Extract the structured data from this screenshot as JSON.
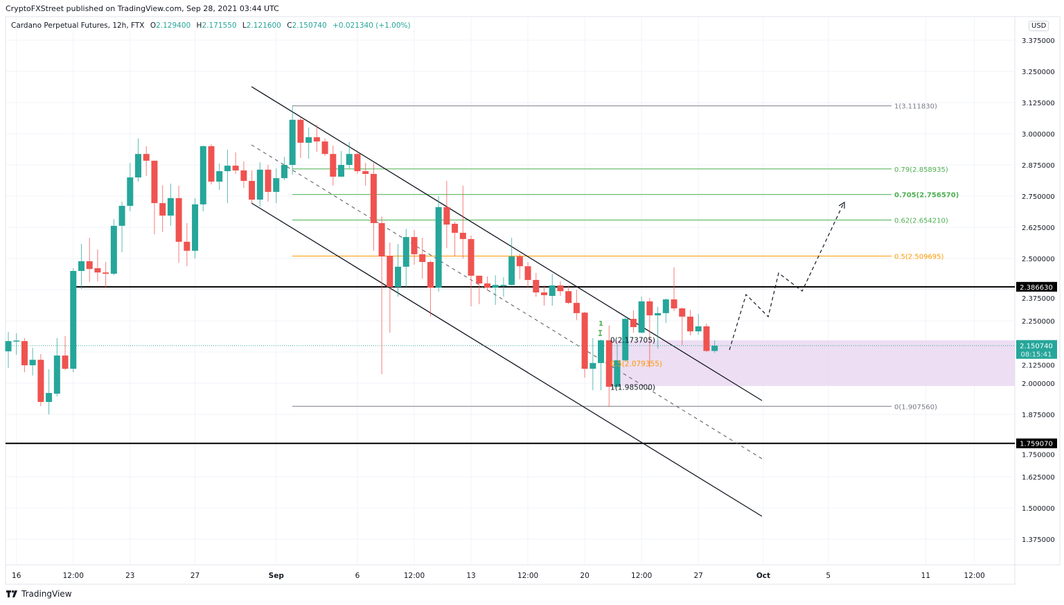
{
  "publisher_line": "CryptoFXStreet published on TradingView.com, Sep 28, 2021 03:44 UTC",
  "legend": {
    "symbol": "Cardano Perpetual Futures, 12h, FTX",
    "o_label": "O",
    "o": "2.129400",
    "h_label": "H",
    "h": "2.171550",
    "l_label": "L",
    "l": "2.121600",
    "c_label": "C",
    "c": "2.150740",
    "change": "+0.021340 (+1.00%)"
  },
  "currency": "USD",
  "brand": "TradingView",
  "colors": {
    "up": "#26a69a",
    "down": "#ef5350",
    "fib_green": "#4caf50",
    "fib_orange": "#ff9800",
    "fib_gray": "#787b86",
    "zone": "#e9d6f0",
    "level": "#000000"
  },
  "chart_data": {
    "type": "candlestick",
    "ylim": [
      1.3,
      3.45
    ],
    "grid": true,
    "y_ticks": [
      "3.375000",
      "3.250000",
      "3.125000",
      "3.000000",
      "2.875000",
      "2.750000",
      "2.625000",
      "2.500000",
      "2.375000",
      "2.250000",
      "2.125000",
      "2.000000",
      "1.875000",
      "1.750000",
      "1.625000",
      "1.500000",
      "1.375000"
    ],
    "x_ticks": [
      "16",
      "12:00",
      "23",
      "27",
      "Sep",
      "6",
      "12:00",
      "13",
      "12:00",
      "20",
      "12:00",
      "27",
      "Oct",
      "5",
      "11",
      "12:00"
    ],
    "candles": [
      [
        2.128,
        2.206,
        2.061,
        2.169
      ],
      [
        2.169,
        2.2,
        2.114,
        2.171
      ],
      [
        2.169,
        2.181,
        2.044,
        2.072
      ],
      [
        2.072,
        2.142,
        2.031,
        2.094
      ],
      [
        2.094,
        2.117,
        1.908,
        1.925
      ],
      [
        1.925,
        2.056,
        1.875,
        1.961
      ],
      [
        1.958,
        2.181,
        1.947,
        2.111
      ],
      [
        2.111,
        2.189,
        2.053,
        2.058
      ],
      [
        2.058,
        2.461,
        2.044,
        2.45
      ],
      [
        2.45,
        2.558,
        2.378,
        2.489
      ],
      [
        2.489,
        2.583,
        2.406,
        2.458
      ],
      [
        2.461,
        2.536,
        2.408,
        2.444
      ],
      [
        2.444,
        2.486,
        2.381,
        2.439
      ],
      [
        2.439,
        2.658,
        2.433,
        2.631
      ],
      [
        2.631,
        2.728,
        2.525,
        2.711
      ],
      [
        2.711,
        2.883,
        2.689,
        2.825
      ],
      [
        2.825,
        2.981,
        2.808,
        2.919
      ],
      [
        2.919,
        2.95,
        2.831,
        2.892
      ],
      [
        2.892,
        2.892,
        2.597,
        2.722
      ],
      [
        2.722,
        2.794,
        2.606,
        2.672
      ],
      [
        2.672,
        2.8,
        2.631,
        2.742
      ],
      [
        2.742,
        2.792,
        2.483,
        2.567
      ],
      [
        2.567,
        2.642,
        2.469,
        2.531
      ],
      [
        2.531,
        2.742,
        2.5,
        2.717
      ],
      [
        2.717,
        2.953,
        2.689,
        2.95
      ],
      [
        2.95,
        2.958,
        2.797,
        2.808
      ],
      [
        2.808,
        2.881,
        2.775,
        2.85
      ],
      [
        2.85,
        2.936,
        2.722,
        2.872
      ],
      [
        2.872,
        2.925,
        2.839,
        2.853
      ],
      [
        2.853,
        2.889,
        2.783,
        2.811
      ],
      [
        2.811,
        2.853,
        2.722,
        2.736
      ],
      [
        2.736,
        2.886,
        2.708,
        2.856
      ],
      [
        2.856,
        2.875,
        2.728,
        2.767
      ],
      [
        2.767,
        2.861,
        2.722,
        2.822
      ],
      [
        2.822,
        2.908,
        2.814,
        2.875
      ],
      [
        2.875,
        3.111,
        2.836,
        3.056
      ],
      [
        3.056,
        3.067,
        2.903,
        2.964
      ],
      [
        2.964,
        3.025,
        2.9,
        2.986
      ],
      [
        2.986,
        3.036,
        2.928,
        2.969
      ],
      [
        2.969,
        2.981,
        2.911,
        2.919
      ],
      [
        2.919,
        2.953,
        2.792,
        2.828
      ],
      [
        2.828,
        2.931,
        2.828,
        2.875
      ],
      [
        2.875,
        2.967,
        2.861,
        2.919
      ],
      [
        2.919,
        2.933,
        2.839,
        2.85
      ],
      [
        2.85,
        2.883,
        2.792,
        2.839
      ],
      [
        2.839,
        2.883,
        2.531,
        2.642
      ],
      [
        2.642,
        2.669,
        2.036,
        2.508
      ],
      [
        2.511,
        2.564,
        2.203,
        2.386
      ],
      [
        2.386,
        2.558,
        2.347,
        2.467
      ],
      [
        2.467,
        2.619,
        2.386,
        2.586
      ],
      [
        2.586,
        2.614,
        2.475,
        2.517
      ],
      [
        2.517,
        2.583,
        2.419,
        2.486
      ],
      [
        2.486,
        2.492,
        2.267,
        2.383
      ],
      [
        2.383,
        2.75,
        2.367,
        2.706
      ],
      [
        2.706,
        2.811,
        2.542,
        2.636
      ],
      [
        2.639,
        2.647,
        2.508,
        2.603
      ],
      [
        2.603,
        2.792,
        2.5,
        2.578
      ],
      [
        2.578,
        2.592,
        2.308,
        2.431
      ],
      [
        2.431,
        2.431,
        2.317,
        2.4
      ],
      [
        2.4,
        2.428,
        2.372,
        2.383
      ],
      [
        2.383,
        2.433,
        2.314,
        2.394
      ],
      [
        2.392,
        2.425,
        2.347,
        2.394
      ],
      [
        2.394,
        2.583,
        2.392,
        2.508
      ],
      [
        2.508,
        2.519,
        2.417,
        2.469
      ],
      [
        2.469,
        2.486,
        2.381,
        2.414
      ],
      [
        2.414,
        2.442,
        2.347,
        2.364
      ],
      [
        2.364,
        2.392,
        2.311,
        2.353
      ],
      [
        2.35,
        2.439,
        2.311,
        2.392
      ],
      [
        2.392,
        2.408,
        2.35,
        2.369
      ],
      [
        2.369,
        2.392,
        2.317,
        2.322
      ],
      [
        2.322,
        2.375,
        2.253,
        2.281
      ],
      [
        2.283,
        2.286,
        2.022,
        2.058
      ],
      [
        2.058,
        2.181,
        1.972,
        2.081
      ],
      [
        2.081,
        2.175,
        1.972,
        2.172
      ],
      [
        2.172,
        2.231,
        1.906,
        1.986
      ],
      [
        1.986,
        2.158,
        1.981,
        2.092
      ],
      [
        2.092,
        2.269,
        2.089,
        2.258
      ],
      [
        2.258,
        2.292,
        2.203,
        2.225
      ],
      [
        2.203,
        2.347,
        2.2,
        2.328
      ],
      [
        2.328,
        2.342,
        2.064,
        2.272
      ],
      [
        2.272,
        2.306,
        2.139,
        2.281
      ],
      [
        2.281,
        2.339,
        2.242,
        2.336
      ],
      [
        2.336,
        2.464,
        2.289,
        2.3
      ],
      [
        2.3,
        2.303,
        2.153,
        2.267
      ],
      [
        2.267,
        2.294,
        2.192,
        2.208
      ],
      [
        2.208,
        2.278,
        2.194,
        2.228
      ],
      [
        2.228,
        2.239,
        2.126,
        2.1294
      ],
      [
        2.1294,
        2.17155,
        2.1216,
        2.15074
      ]
    ],
    "fib_main": [
      {
        "label": "1(3.111830)",
        "price": 3.11183,
        "color": "#787b86"
      },
      {
        "label": "0.79(2.858935)",
        "price": 2.858935,
        "color": "#4caf50"
      },
      {
        "label": "0.705(2.756570)",
        "price": 2.75657,
        "color": "#4caf50"
      },
      {
        "label": "0.62(2.654210)",
        "price": 2.65421,
        "color": "#4caf50"
      },
      {
        "label": "0.5(2.509695)",
        "price": 2.509695,
        "color": "#ff9800"
      },
      {
        "label": "0(1.907560)",
        "price": 1.90756,
        "color": "#787b86"
      }
    ],
    "fib_small": [
      {
        "label": "0(2.173705)",
        "price": 2.173705,
        "color": "#131722"
      },
      {
        "label": "0.5(2.079355)",
        "price": 2.079355,
        "color": "#ff9800"
      },
      {
        "label": "1(1.985000)",
        "price": 1.985,
        "color": "#131722"
      }
    ],
    "zone": [
      1.989,
      2.172
    ],
    "levels": [
      {
        "label": "2.386630",
        "price": 2.38663
      },
      {
        "label": "1.759070",
        "price": 1.75907
      }
    ],
    "last_price": {
      "label": "2.150740",
      "price": 2.15074,
      "countdown": "08:15:41"
    },
    "marker": "1"
  }
}
